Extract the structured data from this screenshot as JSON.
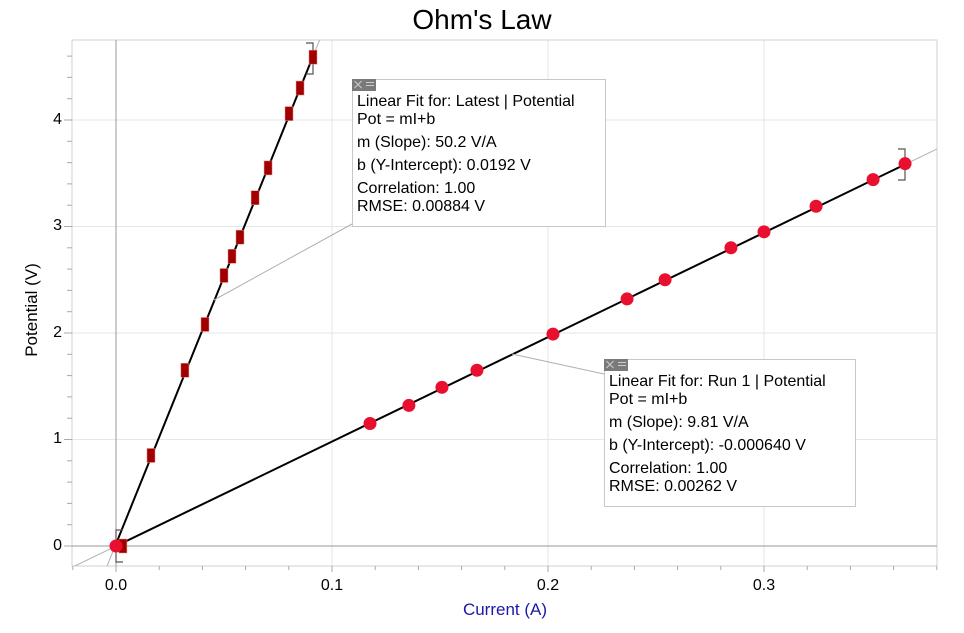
{
  "chart_data": {
    "type": "scatter",
    "title": "Ohm's Law",
    "xlabel": "Current (A)",
    "ylabel": "Potential (V)",
    "xlim": [
      -0.02,
      0.38
    ],
    "ylim": [
      -0.19,
      4.77
    ],
    "x_ticks": [
      "0.0",
      "0.1",
      "0.2",
      "0.3"
    ],
    "y_ticks": [
      "0",
      "1",
      "2",
      "3",
      "4"
    ],
    "grid": true,
    "series": [
      {
        "name": "Latest | Potential",
        "marker": "rectangle",
        "color": "#a00000",
        "x": [
          0.0032,
          0.0162,
          0.0319,
          0.0412,
          0.05,
          0.0537,
          0.0574,
          0.0644,
          0.0704,
          0.0801,
          0.0852,
          0.0912
        ],
        "y": [
          0.0,
          0.85,
          1.65,
          2.08,
          2.54,
          2.72,
          2.9,
          3.27,
          3.55,
          4.06,
          4.3,
          4.59
        ]
      },
      {
        "name": "Run 1 | Potential",
        "marker": "circle",
        "color": "#e8102e",
        "x": [
          0.0,
          0.1176,
          0.1356,
          0.1509,
          0.1671,
          0.2023,
          0.2366,
          0.2542,
          0.2847,
          0.3,
          0.3241,
          0.3505,
          0.3653
        ],
        "y": [
          0.0,
          1.15,
          1.32,
          1.49,
          1.65,
          1.99,
          2.32,
          2.5,
          2.8,
          2.95,
          3.19,
          3.44,
          3.59
        ]
      }
    ],
    "fits": [
      {
        "series": "Latest | Potential",
        "slope": 50.2,
        "intercept": 0.0192
      },
      {
        "series": "Run 1 | Potential",
        "slope": 9.81,
        "intercept": -0.00064
      }
    ]
  },
  "fit_boxes": [
    {
      "header": "Linear Fit for: Latest | Potential",
      "equation": "Pot = mI+b",
      "slope": "m (Slope): 50.2 V/A",
      "intercept": "b (Y-Intercept): 0.0192 V",
      "correlation": "Correlation: 1.00",
      "rmse": "RMSE: 0.00884 V"
    },
    {
      "header": "Linear Fit for: Run 1 | Potential",
      "equation": "Pot = mI+b",
      "slope": "m (Slope): 9.81 V/A",
      "intercept": "b (Y-Intercept): -0.000640 V",
      "correlation": "Correlation: 1.00",
      "rmse": "RMSE: 0.00262 V"
    }
  ],
  "icons": {
    "close": "close-icon",
    "minimize": "minimize-icon"
  },
  "colors": {
    "latest_marker": "#a00000",
    "run1_marker": "#e8102e",
    "fit_line": "#000000",
    "grid": "#e6e6e6",
    "xlabel": "#1a1aa6"
  }
}
